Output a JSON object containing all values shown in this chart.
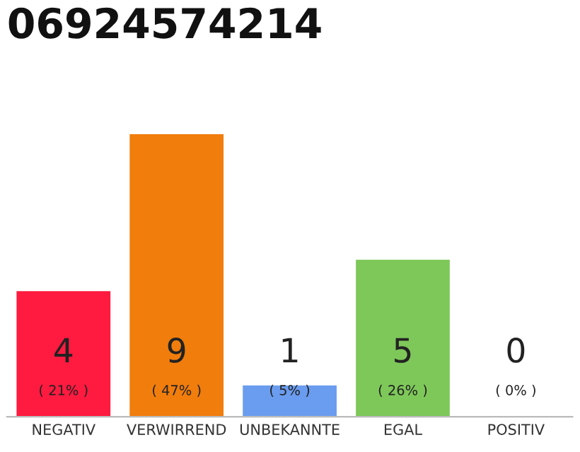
{
  "chart_data": {
    "type": "bar",
    "title": "06924574214",
    "categories": [
      "NEGATIV",
      "VERWIRREND",
      "UNBEKANNTE",
      "EGAL",
      "POSITIV"
    ],
    "values": [
      4,
      9,
      1,
      5,
      0
    ],
    "colors": [
      "#ff1a40",
      "#f17d0c",
      "#6a9cef",
      "#7ec85a",
      "#cccccc"
    ],
    "value_labels": [
      "4\n( 21% )",
      "9\n( 47% )",
      "1\n( 5% )",
      "5\n( 26% )",
      "0\n( 0% )"
    ],
    "ylim": [
      0,
      9
    ],
    "tick_labels": "x",
    "grid": false,
    "legend": false
  }
}
